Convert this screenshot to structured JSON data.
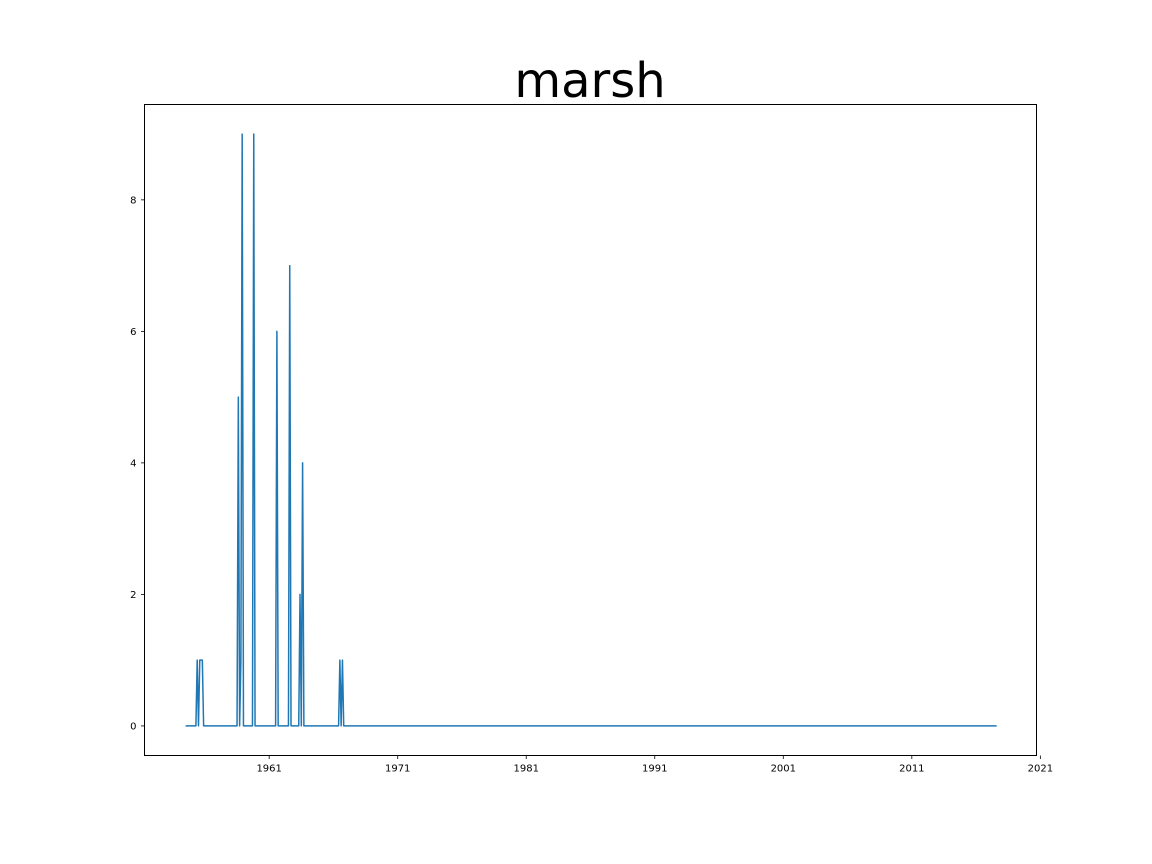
{
  "chart_data": {
    "type": "line",
    "title": "marsh",
    "xlabel": "",
    "ylabel": "",
    "xlim": [
      1951.3,
      2020.7
    ],
    "ylim": [
      -0.45,
      9.45
    ],
    "x_ticks": [
      1961,
      1971,
      1981,
      1991,
      2001,
      2011,
      2021
    ],
    "y_ticks": [
      0,
      2,
      4,
      6,
      8
    ],
    "grid": false,
    "legend": "none",
    "series_color": "#1f77b4",
    "x_range": [
      1954.5,
      2017.6
    ],
    "series": [
      {
        "x": [
          1954.5,
          1955.3,
          1955.4,
          1955.5,
          1955.6,
          1955.8,
          1955.9,
          1956.0,
          1956.1,
          1958.5,
          1958.6,
          1958.7,
          1958.8,
          1958.9,
          1959.0,
          1959.1,
          1959.2,
          1959.7,
          1959.8,
          1959.9,
          1960.0,
          1961.5,
          1961.6,
          1961.7,
          1962.5,
          1962.6,
          1962.7,
          1963.3,
          1963.4,
          1963.5,
          1963.6,
          1963.7,
          1963.8,
          1966.4,
          1966.5,
          1966.6,
          1966.7,
          1966.8,
          2017.6
        ],
        "y": [
          0,
          0,
          1,
          0,
          1,
          1,
          0,
          0,
          0,
          0,
          5,
          0,
          1,
          9,
          0,
          0,
          0,
          0,
          9,
          0,
          0,
          0,
          6,
          0,
          0,
          7,
          0,
          0,
          2,
          0,
          4,
          0,
          0,
          0,
          1,
          0,
          1,
          0,
          0
        ]
      }
    ]
  }
}
